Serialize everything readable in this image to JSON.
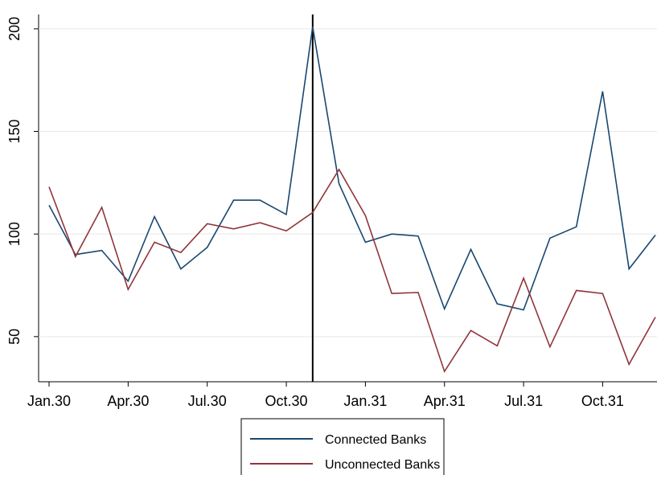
{
  "chart_data": {
    "type": "line",
    "categories": [
      "Jan.30",
      null,
      null,
      "Apr.30",
      null,
      null,
      "Jul.30",
      null,
      null,
      "Oct.30",
      null,
      null,
      "Jan.31",
      null,
      null,
      "Apr.31",
      null,
      null,
      "Jul.31",
      null,
      null,
      "Oct.31",
      null,
      null
    ],
    "series": [
      {
        "name": "Connected Banks",
        "color": "#1a476f",
        "values": [
          114,
          90,
          92,
          77,
          108.5,
          83,
          93.5,
          116.5,
          116.5,
          109.5,
          201,
          124.5,
          96,
          100,
          99,
          63.5,
          92.5,
          66,
          63,
          98,
          103.5,
          169.5,
          83,
          99.5
        ]
      },
      {
        "name": "Unconnected Banks",
        "color": "#90353b",
        "values": [
          123,
          89,
          113,
          73,
          96,
          91,
          105,
          102.5,
          105.5,
          101.5,
          110.5,
          131.5,
          109,
          71,
          71.5,
          33,
          53,
          45.5,
          78.5,
          45,
          72.5,
          71,
          36.5,
          59.5
        ]
      }
    ],
    "ylim": [
      28,
      207
    ],
    "yticks": [
      50,
      100,
      150,
      200
    ],
    "grid": true,
    "vline_index": 10
  }
}
